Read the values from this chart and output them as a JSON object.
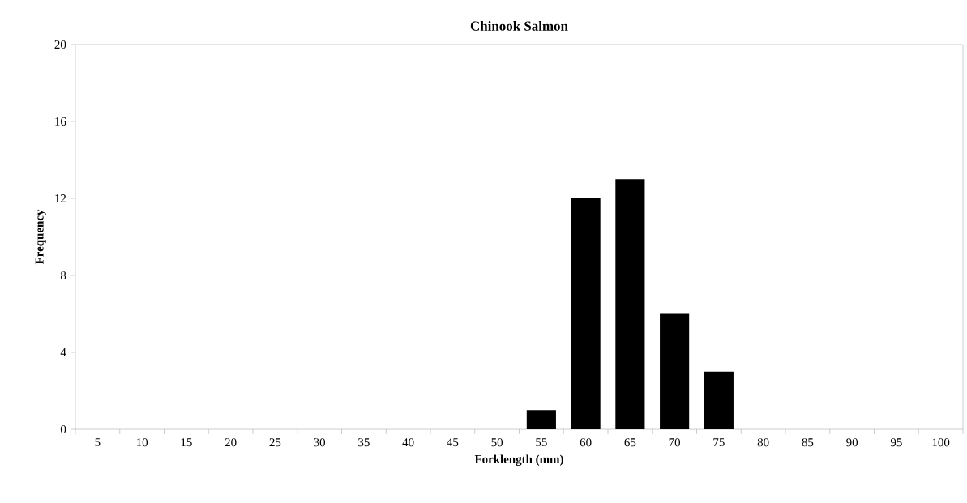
{
  "chart_data": {
    "type": "bar",
    "title": "Chinook Salmon",
    "xlabel": "Forklength (mm)",
    "ylabel": "Frequency",
    "categories": [
      "5",
      "10",
      "15",
      "20",
      "25",
      "30",
      "35",
      "40",
      "45",
      "50",
      "55",
      "60",
      "65",
      "70",
      "75",
      "80",
      "85",
      "90",
      "95",
      "100"
    ],
    "values": [
      0,
      0,
      0,
      0,
      0,
      0,
      0,
      0,
      0,
      0,
      1,
      12,
      13,
      6,
      3,
      0,
      0,
      0,
      0,
      0
    ],
    "color": "#000000",
    "ylim": [
      0,
      20
    ],
    "yticks": [
      0,
      4,
      8,
      12,
      16,
      20
    ]
  }
}
